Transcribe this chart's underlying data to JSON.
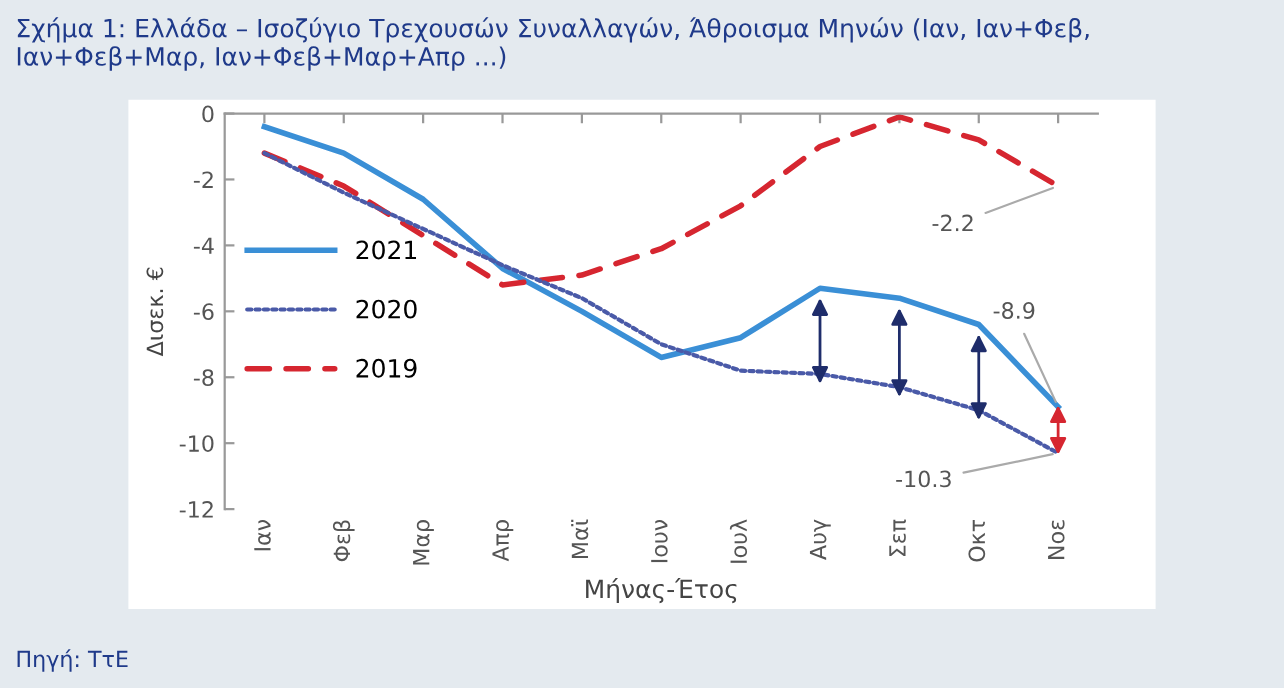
{
  "chart_data": {
    "type": "line",
    "title": "Σχήμα 1: Ελλάδα – Ισοζύγιο Τρεχουσών Συναλλαγών, Άθροισμα Μηνών (Ιαν, Ιαν+Φεβ, Ιαν+Φεβ+Μαρ, Ιαν+Φεβ+Μαρ+Απρ ...)",
    "xlabel": "Μήνας-Έτος",
    "ylabel": "Δισεκ. €",
    "categories": [
      "Ιαν",
      "Φεβ",
      "Μαρ",
      "Απρ",
      "Μαϊ",
      "Ιουν",
      "Ιουλ",
      "Αυγ",
      "Σεπ",
      "Οκτ",
      "Νοε"
    ],
    "series": [
      {
        "name": "2021",
        "color": "#3a8fd6",
        "line_style": "solid",
        "values": [
          -0.4,
          -1.2,
          -2.6,
          -4.7,
          -6.0,
          -7.4,
          -6.8,
          -5.3,
          -5.6,
          -6.4,
          -8.9
        ]
      },
      {
        "name": "2020",
        "color": "#4a5aa8",
        "line_style": "dotted",
        "values": [
          -1.2,
          -2.4,
          -3.5,
          -4.6,
          -5.6,
          -7.0,
          -7.8,
          -7.9,
          -8.3,
          -9.0,
          -10.3
        ]
      },
      {
        "name": "2019",
        "color": "#d62630",
        "line_style": "dashed",
        "values": [
          -1.2,
          -2.2,
          -3.7,
          -5.2,
          -4.9,
          -4.1,
          -2.8,
          -1.0,
          -0.1,
          -0.8,
          -2.2
        ]
      }
    ],
    "ylim": [
      -12,
      0
    ],
    "yticks": [
      {
        "value": -12,
        "label": "-12"
      },
      {
        "value": -10,
        "label": "-10"
      },
      {
        "value": -8,
        "label": "-8"
      },
      {
        "value": -6,
        "label": "-6"
      },
      {
        "value": -4,
        "label": "-4"
      },
      {
        "value": -2,
        "label": "-2"
      },
      0
    ],
    "grid": false,
    "legend": "center left",
    "marker": "none",
    "annotations": [
      {
        "text": "-2.2",
        "x": "Νοε",
        "y": -2.2
      },
      {
        "text": "-8.9",
        "x": "Νοε",
        "y": -8.9
      },
      {
        "text": "-10.3",
        "x": "Νοε",
        "y": -10.3
      },
      "Πηγή: ΤτΕ"
    ]
  }
}
